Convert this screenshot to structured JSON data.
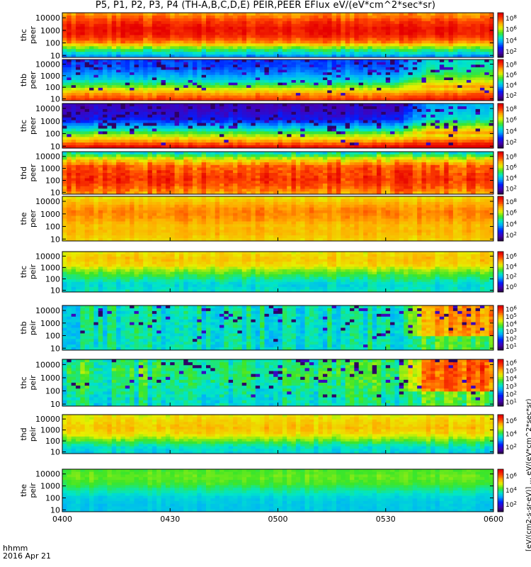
{
  "title": "P5, P1, P2, P3, P4 (TH-A,B,C,D,E) PEIR,PEER EFlux eV/(eV*cm^2*sec*sr)",
  "time_axis_label": "hhmm",
  "date_label": "2016 Apr 21",
  "colorbar_title": "[eV/(cm2-s-sr-eV)] ... eV/(eV*cm^2*sec*sr)",
  "chart_data": [
    {
      "type": "heatmap",
      "name": "thc peer",
      "line1": "thc",
      "line2": "peer",
      "ylabels": [
        "10",
        "100",
        "1000",
        "10000"
      ],
      "ylog": true,
      "ylim": [
        7,
        25000
      ],
      "cb_ticks": [
        "10^2",
        "10^4",
        "10^6",
        "10^8"
      ],
      "profile": [
        0.35,
        0.55,
        0.82,
        0.95,
        0.97,
        0.9,
        0.8
      ],
      "noise": 0.06,
      "speckle": 0
    },
    {
      "type": "heatmap",
      "name": "thb peer",
      "line1": "thb",
      "line2": "peer",
      "ylabels": [
        "10",
        "100",
        "1000",
        "10000"
      ],
      "ylog": true,
      "ylim": [
        7,
        25000
      ],
      "cb_ticks": [
        "10^2",
        "10^4",
        "10^6",
        "10^8"
      ],
      "profile": [
        0.9,
        0.78,
        0.58,
        0.42,
        0.33,
        0.27,
        0.25
      ],
      "noise": 0.04,
      "speckle": 0.25,
      "late_rise": 0.2
    },
    {
      "type": "heatmap",
      "name": "thc peer 2",
      "line1": "thc",
      "line2": "peer",
      "ylabels": [
        "10",
        "100",
        "1000",
        "10000"
      ],
      "ylog": true,
      "ylim": [
        7,
        25000
      ],
      "cb_ticks": [
        "10^2",
        "10^4",
        "10^6",
        "10^8"
      ],
      "profile": [
        0.97,
        0.75,
        0.55,
        0.35,
        0.2,
        0.15,
        0.12
      ],
      "noise": 0.04,
      "speckle": 0.3,
      "late_rise": 0.25
    },
    {
      "type": "heatmap",
      "name": "thd peer",
      "line1": "thd",
      "line2": "peer",
      "ylabels": [
        "10",
        "100",
        "1000",
        "10000"
      ],
      "ylog": true,
      "ylim": [
        7,
        25000
      ],
      "cb_ticks": [
        "10^2",
        "10^4",
        "10^6",
        "10^8"
      ],
      "profile": [
        0.8,
        0.88,
        0.92,
        0.9,
        0.86,
        0.7,
        0.45
      ],
      "noise": 0.08,
      "speckle": 0
    },
    {
      "type": "heatmap",
      "name": "the peer",
      "line1": "the",
      "line2": "peer",
      "ylabels": [
        "10",
        "100",
        "1000",
        "10000"
      ],
      "ylog": true,
      "ylim": [
        7,
        25000
      ],
      "cb_ticks": [
        "10^2",
        "10^4",
        "10^6",
        "10^8"
      ],
      "profile": [
        0.72,
        0.76,
        0.75,
        0.8,
        0.82,
        0.78,
        0.7
      ],
      "noise": 0.04,
      "speckle": 0
    },
    {
      "type": "heatmap",
      "name": "thc peir",
      "line1": "thc",
      "line2": "peir",
      "ylabels": [
        "10",
        "100",
        "1000",
        "10000"
      ],
      "ylog": true,
      "ylim": [
        7,
        25000
      ],
      "cb_ticks": [
        "10^0",
        "10^2",
        "10^4",
        "10^6"
      ],
      "profile": [
        0.45,
        0.42,
        0.5,
        0.58,
        0.7,
        0.74,
        0.7
      ],
      "noise": 0.05,
      "speckle": 0
    },
    {
      "type": "heatmap",
      "name": "thb peir",
      "line1": "thb",
      "line2": "peir",
      "ylabels": [
        "10",
        "100",
        "1000",
        "10000"
      ],
      "ylog": true,
      "ylim": [
        7,
        25000
      ],
      "cb_ticks": [
        "10^1",
        "10^2",
        "10^3",
        "10^4",
        "10^5",
        "10^6"
      ],
      "profile": [
        0.45,
        0.45,
        0.45,
        0.45,
        0.45,
        0.45,
        0.45
      ],
      "noise": 0.09,
      "speckle": 0.12,
      "late_rise": 0.35
    },
    {
      "type": "heatmap",
      "name": "thc peir 2",
      "line1": "thc",
      "line2": "peir",
      "ylabels": [
        "10",
        "100",
        "1000",
        "10000"
      ],
      "ylog": true,
      "ylim": [
        7,
        25000
      ],
      "cb_ticks": [
        "10^1",
        "10^2",
        "10^3",
        "10^4",
        "10^5",
        "10^6"
      ],
      "profile": [
        0.45,
        0.46,
        0.48,
        0.5,
        0.52,
        0.52,
        0.5
      ],
      "noise": 0.1,
      "speckle": 0.15,
      "late_rise": 0.35
    },
    {
      "type": "heatmap",
      "name": "thd peir",
      "line1": "thd",
      "line2": "peir",
      "ylabels": [
        "10",
        "100",
        "1000",
        "10000"
      ],
      "ylog": true,
      "ylim": [
        7,
        25000
      ],
      "cb_ticks": [
        "10^2",
        "10^4",
        "10^6"
      ],
      "profile": [
        0.42,
        0.45,
        0.58,
        0.7,
        0.74,
        0.72,
        0.68
      ],
      "noise": 0.05,
      "speckle": 0
    },
    {
      "type": "heatmap",
      "name": "the peir",
      "line1": "the",
      "line2": "peir",
      "ylabels": [
        "10",
        "100",
        "1000",
        "10000"
      ],
      "ylog": true,
      "ylim": [
        7,
        25000
      ],
      "cb_ticks": [
        "10^2",
        "10^4",
        "10^6"
      ],
      "profile": [
        0.4,
        0.4,
        0.42,
        0.48,
        0.55,
        0.58,
        0.56
      ],
      "noise": 0.03,
      "speckle": 0
    }
  ],
  "x_axis": {
    "ticks": [
      "0400",
      "0430",
      "0500",
      "0530",
      "0600"
    ],
    "label": "hhmm"
  }
}
